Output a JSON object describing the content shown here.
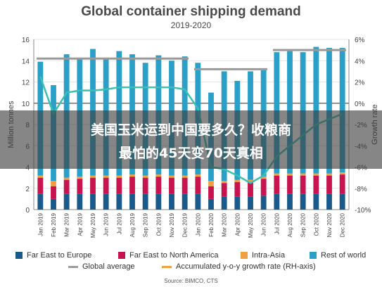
{
  "title": "Global container shipping demand",
  "subtitle": "2019-2020",
  "overlay": {
    "line1": "美国玉米运到中国要多久？收粮商",
    "line2": "最怕的45天变70天真相"
  },
  "source": "Source: BIMCO, CTS",
  "colors": {
    "far_east_europe": "#1a5a8a",
    "far_east_na": "#c7144f",
    "intra_asia": "#f0a040",
    "rest_world": "#2aa0c8",
    "global_avg": "#9a9a9a",
    "growth": "#3cc0b0"
  },
  "chart_data": {
    "type": "bar",
    "title": "Global container shipping demand",
    "subtitle": "2019-2020",
    "ylabel": "Million tonnes",
    "y2label": "Growth rate",
    "ylim": [
      0,
      16
    ],
    "y2lim": [
      -10,
      6
    ],
    "yticks": [
      "0",
      "2",
      "4",
      "6",
      "8",
      "10",
      "12",
      "14",
      "16"
    ],
    "y2ticks": [
      "-10%",
      "-8%",
      "-6%",
      "-4%",
      "-2%",
      "0%",
      "2%",
      "4%",
      "6%"
    ],
    "categories": [
      "Jan 2019",
      "Feb 2019",
      "Mar 2019",
      "Apr 2019",
      "May 2019",
      "Jun 2019",
      "Jul 2019",
      "Aug 2019",
      "Sep 2019",
      "Oct 2019",
      "Nov 2019",
      "Dec 2019",
      "Jan 2020",
      "Feb 2020",
      "Mar 2020",
      "Apr 2020",
      "May 2020",
      "Jun 2020",
      "Jul 2020",
      "Aug 2020",
      "Sep 2020",
      "Oct 2020",
      "Nov 2020",
      "Dec 2020"
    ],
    "series": [
      {
        "name": "Far East to Europe",
        "values": [
          1.5,
          1.0,
          1.5,
          1.5,
          1.5,
          1.5,
          1.5,
          1.5,
          1.5,
          1.5,
          1.5,
          1.5,
          1.5,
          1.0,
          1.2,
          1.2,
          1.2,
          1.3,
          1.5,
          1.5,
          1.5,
          1.5,
          1.5,
          1.5
        ]
      },
      {
        "name": "Far East to North America",
        "values": [
          1.5,
          1.2,
          1.3,
          1.4,
          1.5,
          1.5,
          1.5,
          1.6,
          1.5,
          1.6,
          1.5,
          1.5,
          1.6,
          1.2,
          1.3,
          1.4,
          1.4,
          1.6,
          1.7,
          1.7,
          1.7,
          1.7,
          1.7,
          1.8
        ]
      },
      {
        "name": "Intra-Asia",
        "values": [
          0.2,
          0.5,
          0.2,
          0.2,
          0.2,
          0.2,
          0.2,
          0.2,
          0.2,
          0.2,
          0.2,
          0.2,
          0.2,
          0.5,
          0.2,
          0.2,
          0.2,
          0.2,
          0.2,
          0.2,
          0.2,
          0.2,
          0.2,
          0.2
        ]
      },
      {
        "name": "Rest of world",
        "values": [
          10.7,
          9.0,
          11.6,
          11.1,
          11.9,
          11.0,
          11.7,
          11.3,
          10.6,
          11.2,
          10.8,
          11.2,
          10.5,
          8.3,
          10.3,
          9.3,
          10.2,
          10.0,
          11.4,
          11.5,
          11.4,
          11.9,
          11.8,
          11.7
        ]
      }
    ],
    "global_average": [
      {
        "from": 0,
        "to": 11,
        "value": 14.2
      },
      {
        "from": 12,
        "to": 17,
        "value": 13.2
      },
      {
        "from": 18,
        "to": 23,
        "value": 15.0
      }
    ],
    "growth_rate": {
      "name": "Accumulated y-o-y growth rate (RH-axis)",
      "values": [
        2.5,
        -1.0,
        1.0,
        1.2,
        1.2,
        1.3,
        1.5,
        1.5,
        1.5,
        1.5,
        1.5,
        1.3,
        -0.5,
        -6.0,
        -6.2,
        -6.8,
        -7.5,
        -6.8,
        -5.0,
        -4.0,
        -3.0,
        -2.0,
        -1.5,
        -1.0
      ]
    },
    "legend": [
      {
        "label": "Far East to Europe",
        "kind": "box",
        "color": "#1a5a8a"
      },
      {
        "label": "Far East to North America",
        "kind": "box",
        "color": "#c7144f"
      },
      {
        "label": "Intra-Asia",
        "kind": "box",
        "color": "#f0a040"
      },
      {
        "label": "Rest of world",
        "kind": "box",
        "color": "#2aa0c8"
      },
      {
        "label": "Global average",
        "kind": "line",
        "color": "#9a9a9a"
      },
      {
        "label": "Accumulated y-o-y growth rate (RH-axis)",
        "kind": "line",
        "color": "#f0a040"
      }
    ],
    "legend_position": "bottom",
    "grid": true
  }
}
